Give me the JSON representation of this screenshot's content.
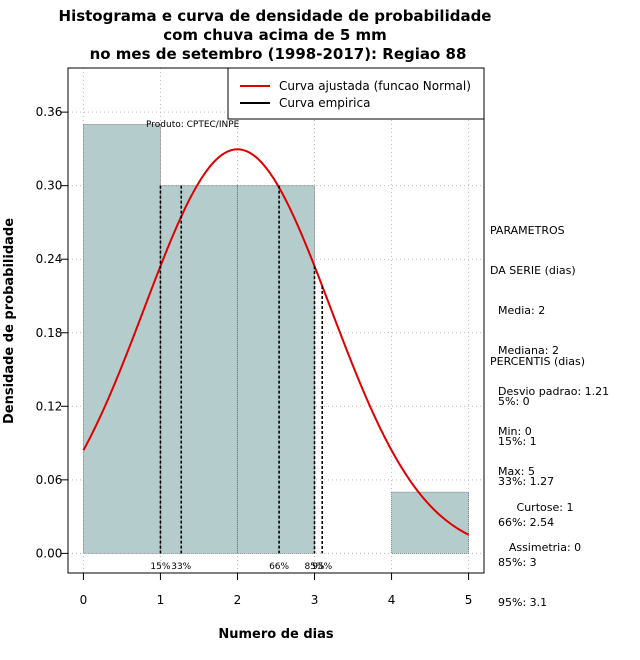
{
  "chart_data": {
    "type": "histogram",
    "title": [
      "Histograma e curva de densidade de probabilidade",
      "com chuva acima de 5 mm",
      "no mes de setembro (1998-2017): Regiao 88"
    ],
    "xlabel": "Numero de dias",
    "ylabel": "Densidade de probabilidade",
    "xlim": [
      -0.2,
      5.2
    ],
    "ylim": [
      -0.016,
      0.396
    ],
    "x_ticks": [
      0,
      1,
      2,
      3,
      4,
      5
    ],
    "y_ticks": [
      0.0,
      0.06,
      0.12,
      0.18,
      0.24,
      0.3,
      0.36
    ],
    "y_tick_labels": [
      "0.00",
      "0.06",
      "0.12",
      "0.18",
      "0.24",
      "0.30",
      "0.36"
    ],
    "bars": [
      {
        "x0": 0,
        "x1": 1,
        "density": 0.35
      },
      {
        "x0": 1,
        "x1": 2,
        "density": 0.3
      },
      {
        "x0": 2,
        "x1": 3,
        "density": 0.3
      },
      {
        "x0": 3,
        "x1": 4,
        "density": 0.0
      },
      {
        "x0": 4,
        "x1": 5,
        "density": 0.05
      }
    ],
    "normal_curve": {
      "mean": 2,
      "sd": 1.21,
      "x_range": [
        0,
        5
      ]
    },
    "percentile_lines": [
      {
        "label": "15%",
        "x": 1
      },
      {
        "label": "33%",
        "x": 1.27
      },
      {
        "label": "66%",
        "x": 2.54
      },
      {
        "label": "85%",
        "x": 3
      },
      {
        "label": "95%",
        "x": 3.1
      }
    ],
    "legend": {
      "position": "top-right",
      "entries": [
        {
          "label": "Curva ajustada (funcao Normal)",
          "color": "#e00000"
        },
        {
          "label": "Curva empirica",
          "color": "#000000"
        }
      ]
    },
    "annotation": "Produto: CPTEC/INPE",
    "bar_fill": "#b5cccc",
    "grid": true
  },
  "stats": {
    "params_title": [
      "PARAMETROS",
      "DA SERIE (dias)"
    ],
    "params": [
      "Media: 2",
      "Mediana: 2",
      "Desvio padrao: 1.21",
      "Min: 0",
      "Max: 5"
    ],
    "percentis_title": "PERCENTIS (dias)",
    "percentis": [
      "5%: 0",
      "15%: 1",
      "33%: 1.27",
      "66%: 2.54",
      "85%: 3",
      "95%: 3.1"
    ],
    "curtose": "Curtose: 1",
    "assimetria": "Assimetria: 0"
  }
}
